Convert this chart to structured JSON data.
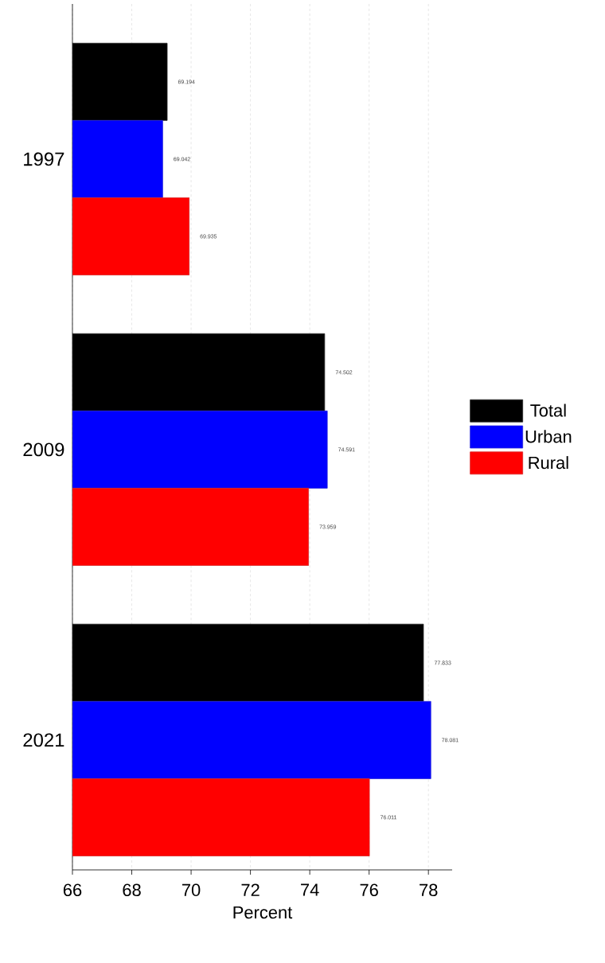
{
  "chart_data": {
    "type": "bar",
    "orientation": "horizontal",
    "categories": [
      "1997",
      "2009",
      "2021"
    ],
    "series": [
      {
        "name": "Total",
        "color": "#000000",
        "values": [
          69.194,
          74.502,
          77.833
        ]
      },
      {
        "name": "Urban",
        "color": "#0000ff",
        "values": [
          69.042,
          74.591,
          78.081
        ]
      },
      {
        "name": "Rural",
        "color": "#ff0000",
        "values": [
          69.935,
          73.959,
          76.011
        ]
      }
    ],
    "xlabel": "Percent",
    "xlim": [
      66,
      78.8
    ],
    "xticks": [
      66,
      68,
      70,
      72,
      74,
      76,
      78
    ],
    "grid": "x",
    "legend": "right",
    "data_labels": true
  }
}
